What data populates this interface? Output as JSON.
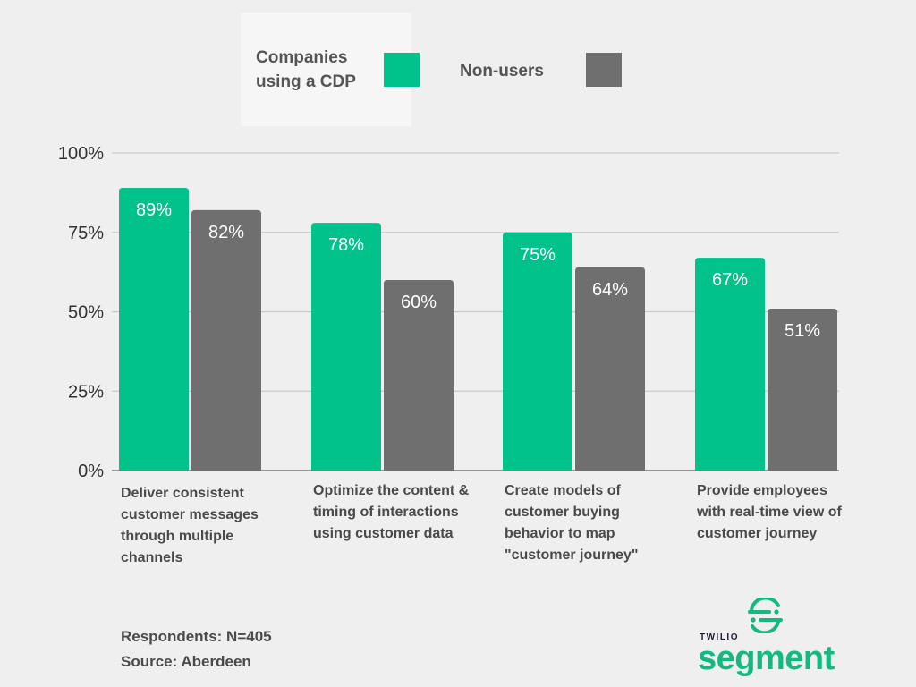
{
  "legend": {
    "items": [
      {
        "label": "Companies using a CDP",
        "color": "#00c28a"
      },
      {
        "label": "Non-users",
        "color": "#6f6f6f"
      }
    ]
  },
  "chart_data": {
    "type": "bar",
    "categories": [
      "Deliver consistent customer messages through multiple channels",
      "Optimize the content & timing of interactions using customer data",
      "Create models of customer buying behavior to map \"customer journey\"",
      "Provide employees with real-time view of customer journey"
    ],
    "series": [
      {
        "name": "Companies using a CDP",
        "values": [
          89,
          78,
          75,
          67
        ],
        "color": "#00c28a"
      },
      {
        "name": "Non-users",
        "values": [
          82,
          60,
          64,
          51
        ],
        "color": "#6f6f6f"
      }
    ],
    "data_labels": [
      [
        "89%",
        "78%",
        "75%",
        "67%"
      ],
      [
        "82%",
        "60%",
        "64%",
        "51%"
      ]
    ],
    "yticks": [
      "0%",
      "25%",
      "50%",
      "75%",
      "100%"
    ],
    "ylim": [
      0,
      100
    ],
    "grid": true
  },
  "footnote": {
    "respondents": "Respondents: N=405",
    "source": "Source: Aberdeen"
  },
  "logo": {
    "brand_small": "TWILIO",
    "brand_large": "segment",
    "color": "#13b97e"
  }
}
